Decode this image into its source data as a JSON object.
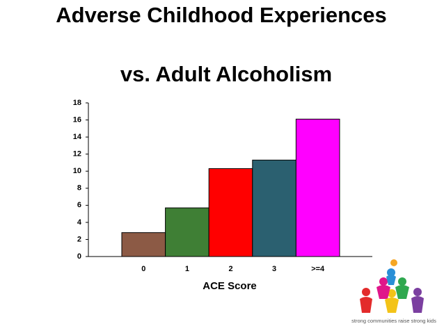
{
  "chart_data": {
    "type": "bar",
    "title": "Adverse Childhood Experiences",
    "subtitle": "vs. Adult Alcoholism",
    "x_label": "ACE Score",
    "categories": [
      "0",
      "1",
      "2",
      "3",
      ">=4"
    ],
    "values": [
      2.8,
      5.7,
      10.3,
      11.3,
      16.1
    ],
    "colors": [
      "#8c5a45",
      "#3f7f35",
      "#ff0000",
      "#2b6070",
      "#ff00ff"
    ],
    "ylim": [
      0,
      18
    ],
    "yticks": [
      0,
      2,
      4,
      6,
      8,
      10,
      12,
      14,
      16,
      18
    ],
    "logo_text": "strong communities raise strong kids"
  }
}
